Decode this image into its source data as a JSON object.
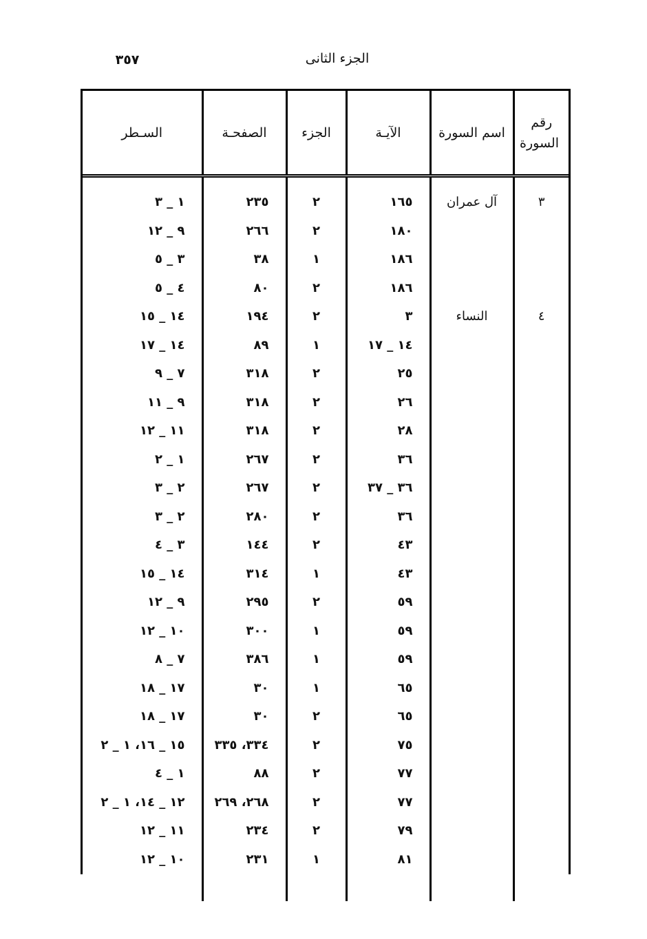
{
  "page": {
    "title": "الجزء الثانى",
    "page_number": "٣٥٧"
  },
  "table": {
    "headers": {
      "surah_number": "رقم السورة",
      "surah_name": "اسم السورة",
      "ayah": "الآيـة",
      "juz": "الجزء",
      "page": "الصفحـة",
      "line": "السـطر"
    },
    "rows": [
      {
        "surah_number": "٣",
        "surah_name": "آل عمران",
        "ayah": "١٦٥",
        "juz": "٢",
        "page": "٢٣٥",
        "line": "١ _ ٣"
      },
      {
        "surah_number": "",
        "surah_name": "",
        "ayah": "١٨٠",
        "juz": "٢",
        "page": "٢٦٦",
        "line": "٩ _ ١٢"
      },
      {
        "surah_number": "",
        "surah_name": "",
        "ayah": "١٨٦",
        "juz": "١",
        "page": "٣٨",
        "line": "٣ _ ٥"
      },
      {
        "surah_number": "",
        "surah_name": "",
        "ayah": "١٨٦",
        "juz": "٢",
        "page": "٨٠",
        "line": "٤ _ ٥"
      },
      {
        "surah_number": "٤",
        "surah_name": "النساء",
        "ayah": "٣",
        "juz": "٢",
        "page": "١٩٤",
        "line": "١٤ _ ١٥"
      },
      {
        "surah_number": "",
        "surah_name": "",
        "ayah": "١٤ _ ١٧",
        "juz": "١",
        "page": "٨٩",
        "line": "١٤ _ ١٧"
      },
      {
        "surah_number": "",
        "surah_name": "",
        "ayah": "٢٥",
        "juz": "٢",
        "page": "٣١٨",
        "line": "٧ _ ٩"
      },
      {
        "surah_number": "",
        "surah_name": "",
        "ayah": "٢٦",
        "juz": "٢",
        "page": "٣١٨",
        "line": "٩ _ ١١"
      },
      {
        "surah_number": "",
        "surah_name": "",
        "ayah": "٢٨",
        "juz": "٢",
        "page": "٣١٨",
        "line": "١١ _ ١٢"
      },
      {
        "surah_number": "",
        "surah_name": "",
        "ayah": "٣٦",
        "juz": "٢",
        "page": "٢٦٧",
        "line": "١ _ ٢"
      },
      {
        "surah_number": "",
        "surah_name": "",
        "ayah": "٣٦ _ ٣٧",
        "juz": "٢",
        "page": "٢٦٧",
        "line": "٢ _ ٣"
      },
      {
        "surah_number": "",
        "surah_name": "",
        "ayah": "٣٦",
        "juz": "٢",
        "page": "٢٨٠",
        "line": "٢ _ ٣"
      },
      {
        "surah_number": "",
        "surah_name": "",
        "ayah": "٤٣",
        "juz": "٢",
        "page": "١٤٤",
        "line": "٣ _ ٤"
      },
      {
        "surah_number": "",
        "surah_name": "",
        "ayah": "٤٣",
        "juz": "١",
        "page": "٣١٤",
        "line": "١٤ _ ١٥"
      },
      {
        "surah_number": "",
        "surah_name": "",
        "ayah": "٥٩",
        "juz": "٢",
        "page": "٢٩٥",
        "line": "٩ _ ١٢"
      },
      {
        "surah_number": "",
        "surah_name": "",
        "ayah": "٥٩",
        "juz": "١",
        "page": "٣٠٠",
        "line": "١٠ _ ١٢"
      },
      {
        "surah_number": "",
        "surah_name": "",
        "ayah": "٥٩",
        "juz": "١",
        "page": "٣٨٦",
        "line": "٧ _ ٨"
      },
      {
        "surah_number": "",
        "surah_name": "",
        "ayah": "٦٥",
        "juz": "١",
        "page": "٣٠",
        "line": "١٧ _ ١٨"
      },
      {
        "surah_number": "",
        "surah_name": "",
        "ayah": "٦٥",
        "juz": "٢",
        "page": "٣٠",
        "line": "١٧ _ ١٨"
      },
      {
        "surah_number": "",
        "surah_name": "",
        "ayah": "٧٥",
        "juz": "٢",
        "page": "٣٣٤، ٣٣٥",
        "line": "١٥ _ ١٦، ١ _ ٢"
      },
      {
        "surah_number": "",
        "surah_name": "",
        "ayah": "٧٧",
        "juz": "٢",
        "page": "٨٨",
        "line": "١ _ ٤"
      },
      {
        "surah_number": "",
        "surah_name": "",
        "ayah": "٧٧",
        "juz": "٢",
        "page": "٢٦٨، ٢٦٩",
        "line": "١٢ _ ١٤، ١ _ ٢"
      },
      {
        "surah_number": "",
        "surah_name": "",
        "ayah": "٧٩",
        "juz": "٢",
        "page": "٢٣٤",
        "line": "١١ _ ١٢"
      },
      {
        "surah_number": "",
        "surah_name": "",
        "ayah": "٨١",
        "juz": "١",
        "page": "٢٣١",
        "line": "١٠ _ ١٢"
      }
    ]
  }
}
